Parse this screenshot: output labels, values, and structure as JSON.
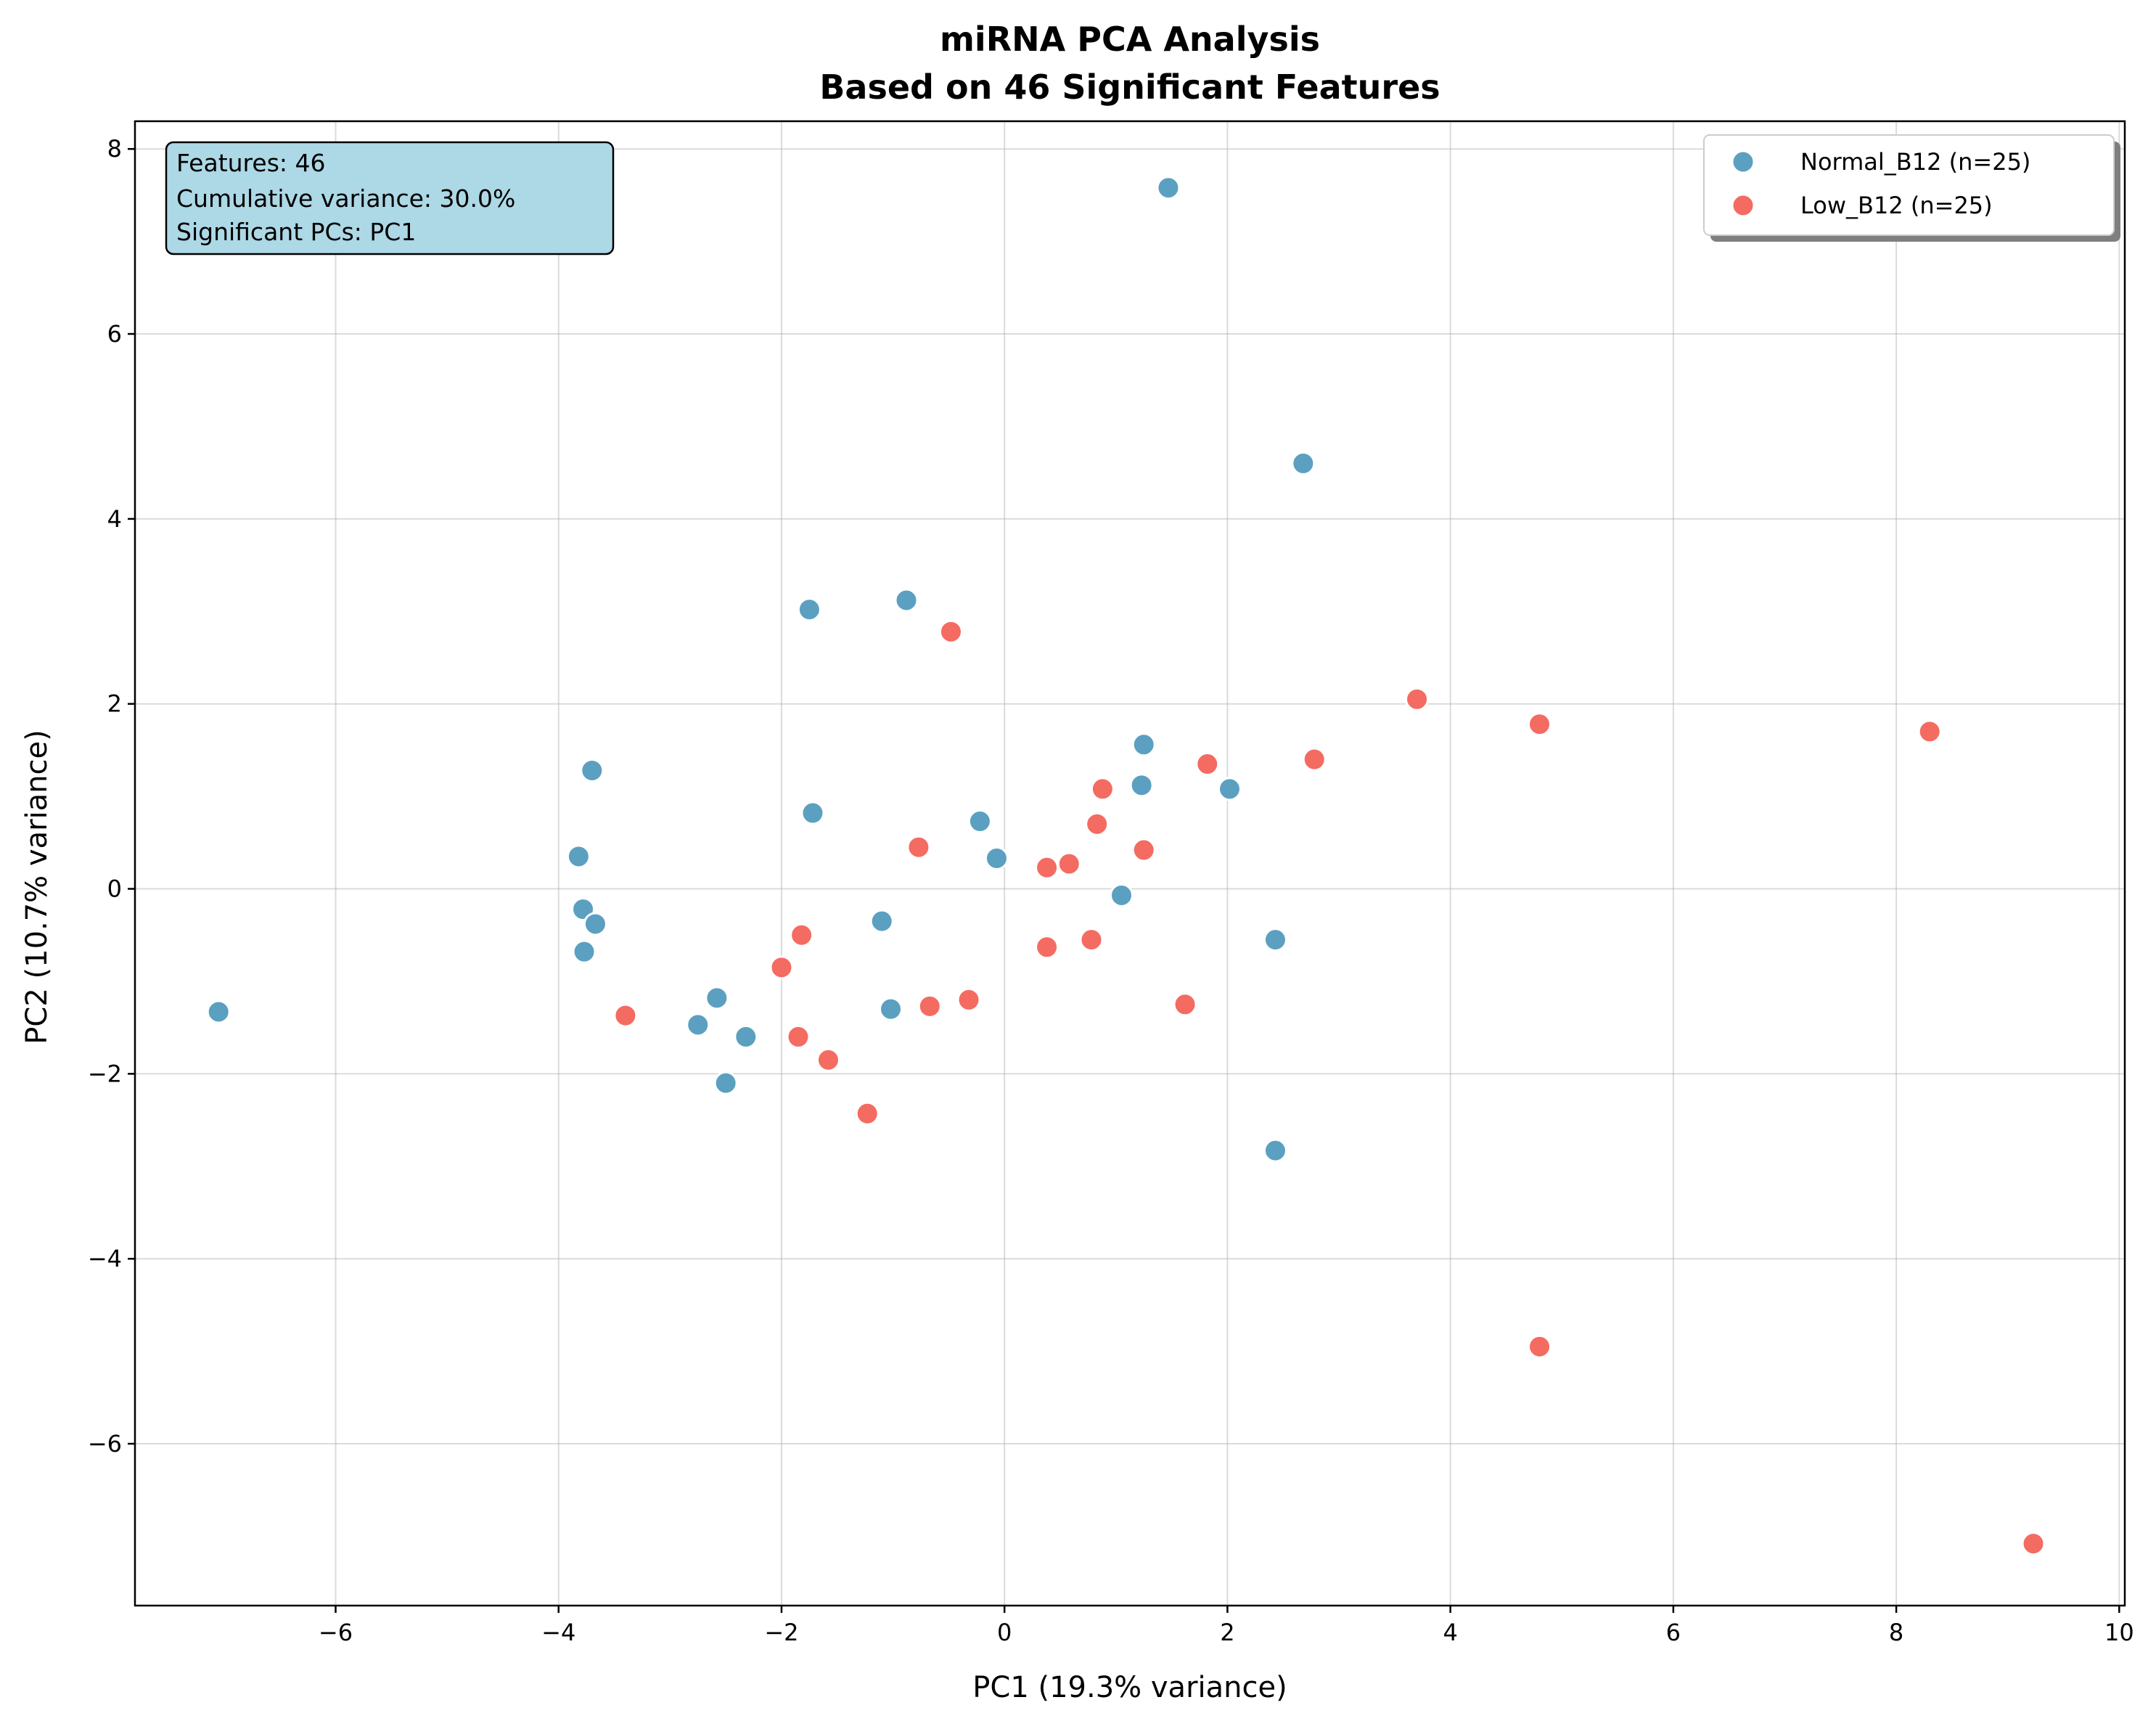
{
  "chart_data": {
    "type": "scatter",
    "title": [
      "miRNA PCA Analysis",
      "Based on 46 Significant Features"
    ],
    "xlabel": "PC1 (19.3% variance)",
    "ylabel": "PC2 (10.7% variance)",
    "xlim": [
      -7.8,
      10.05
    ],
    "ylim": [
      -7.75,
      8.3
    ],
    "xticks": [
      -6,
      -4,
      -2,
      0,
      2,
      4,
      6,
      8,
      10
    ],
    "yticks": [
      -6,
      -4,
      -2,
      0,
      2,
      4,
      6,
      8
    ],
    "grid": true,
    "legend_position": "top-right",
    "info_box": [
      "Features: 46",
      "Cumulative variance: 30.0%",
      "Significant PCs: PC1"
    ],
    "info_box_color": "#add8e6",
    "series": [
      {
        "name": "Normal_B12 (n=25)",
        "color": "#5ba0c0",
        "points": [
          [
            -7.05,
            -1.33
          ],
          [
            -3.82,
            0.35
          ],
          [
            -3.78,
            -0.22
          ],
          [
            -3.77,
            -0.68
          ],
          [
            -3.7,
            1.28
          ],
          [
            -3.67,
            -0.38
          ],
          [
            -2.75,
            -1.47
          ],
          [
            -2.58,
            -1.18
          ],
          [
            -2.5,
            -2.1
          ],
          [
            -2.32,
            -1.6
          ],
          [
            -1.75,
            3.02
          ],
          [
            -1.72,
            0.82
          ],
          [
            -1.1,
            -0.35
          ],
          [
            -1.02,
            -1.3
          ],
          [
            -0.88,
            3.12
          ],
          [
            -0.22,
            0.73
          ],
          [
            -0.07,
            0.33
          ],
          [
            1.05,
            -0.07
          ],
          [
            1.23,
            1.12
          ],
          [
            1.25,
            1.56
          ],
          [
            1.47,
            7.58
          ],
          [
            2.02,
            1.08
          ],
          [
            2.43,
            -0.55
          ],
          [
            2.43,
            -2.83
          ],
          [
            2.68,
            4.6
          ]
        ]
      },
      {
        "name": "Low_B12 (n=25)",
        "color": "#f46b62",
        "points": [
          [
            -3.4,
            -1.37
          ],
          [
            -2.0,
            -0.85
          ],
          [
            -1.85,
            -1.6
          ],
          [
            -1.82,
            -0.5
          ],
          [
            -1.58,
            -1.85
          ],
          [
            -1.23,
            -2.43
          ],
          [
            -0.77,
            0.45
          ],
          [
            -0.67,
            -1.27
          ],
          [
            -0.48,
            2.78
          ],
          [
            -0.32,
            -1.2
          ],
          [
            0.38,
            0.23
          ],
          [
            0.38,
            -0.63
          ],
          [
            0.58,
            0.27
          ],
          [
            0.78,
            -0.55
          ],
          [
            0.83,
            0.7
          ],
          [
            0.88,
            1.08
          ],
          [
            1.25,
            0.42
          ],
          [
            1.62,
            -1.25
          ],
          [
            1.82,
            1.35
          ],
          [
            2.78,
            1.4
          ],
          [
            3.7,
            2.05
          ],
          [
            4.8,
            1.78
          ],
          [
            4.8,
            -4.95
          ],
          [
            8.3,
            1.7
          ],
          [
            9.23,
            -7.08
          ]
        ]
      }
    ]
  }
}
